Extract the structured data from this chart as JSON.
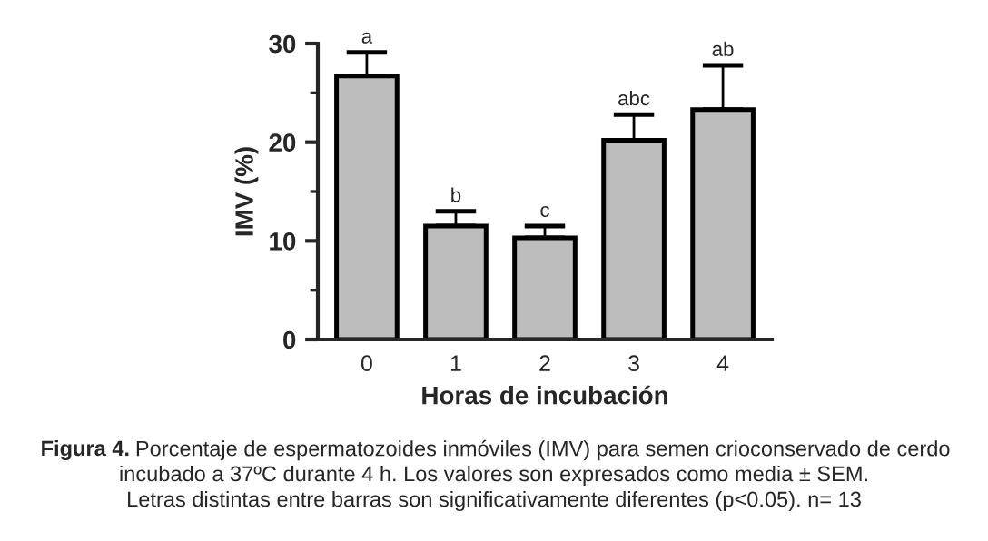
{
  "chart_data": {
    "type": "bar",
    "xlabel": "Horas de incubación",
    "ylabel": "IMV (%)",
    "categories": [
      "0",
      "1",
      "2",
      "3",
      "4"
    ],
    "values": [
      26.7,
      11.5,
      10.3,
      20.2,
      23.3
    ],
    "errors": [
      [
        26.7,
        29.1
      ],
      [
        11.5,
        13.0
      ],
      [
        10.3,
        11.5
      ],
      [
        20.2,
        22.8
      ],
      [
        23.3,
        27.8
      ]
    ],
    "value_labels": [
      "a",
      "b",
      "c",
      "abc",
      "ab"
    ],
    "color": "#bdbdbd",
    "ylim": [
      0,
      30
    ],
    "yticks": [
      0,
      10,
      20,
      30
    ],
    "grid": false,
    "legend": false,
    "annotations": [
      "Figura 4.",
      "Porcentaje de espermatozoides inmóviles (IMV) para semen crioconservado de cerdo",
      "incubado a 37ºC durante 4 h. Los valores son expresados como media ± SEM.",
      "Letras distintas entre barras son significativamente diferentes (p<0.05). n= 13"
    ]
  }
}
